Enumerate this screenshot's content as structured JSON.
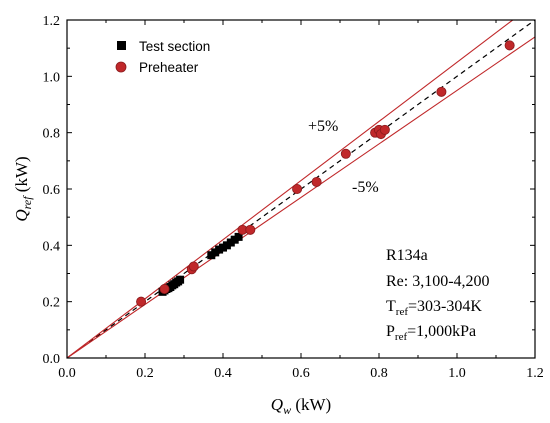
{
  "chart_data": {
    "type": "scatter",
    "x_label": {
      "main": "Q",
      "sub": "w",
      "unit": " (kW)"
    },
    "y_label": {
      "main": "Q",
      "sub": "ref",
      "unit": " (kW)"
    },
    "xlim": [
      0.0,
      1.2
    ],
    "ylim": [
      0.0,
      1.2
    ],
    "x_ticks": [
      "0.0",
      "0.2",
      "0.4",
      "0.6",
      "0.8",
      "1.0",
      "1.2"
    ],
    "y_ticks": [
      "0.0",
      "0.2",
      "0.4",
      "0.6",
      "0.8",
      "1.0",
      "1.2"
    ],
    "grid": false,
    "legend_position": "top-left",
    "series": [
      {
        "name": "Test section",
        "marker": "square",
        "color": "#000000",
        "points": [
          [
            0.245,
            0.235
          ],
          [
            0.25,
            0.24
          ],
          [
            0.255,
            0.245
          ],
          [
            0.26,
            0.248
          ],
          [
            0.265,
            0.252
          ],
          [
            0.27,
            0.258
          ],
          [
            0.275,
            0.262
          ],
          [
            0.28,
            0.268
          ],
          [
            0.285,
            0.272
          ],
          [
            0.29,
            0.278
          ],
          [
            0.37,
            0.365
          ],
          [
            0.38,
            0.375
          ],
          [
            0.39,
            0.385
          ],
          [
            0.4,
            0.392
          ],
          [
            0.41,
            0.4
          ],
          [
            0.42,
            0.41
          ],
          [
            0.43,
            0.42
          ],
          [
            0.44,
            0.43
          ]
        ]
      },
      {
        "name": "Preheater",
        "marker": "circle",
        "color": "#c0282a",
        "points": [
          [
            0.19,
            0.2
          ],
          [
            0.25,
            0.245
          ],
          [
            0.32,
            0.315
          ],
          [
            0.325,
            0.325
          ],
          [
            0.45,
            0.455
          ],
          [
            0.47,
            0.455
          ],
          [
            0.59,
            0.6
          ],
          [
            0.64,
            0.625
          ],
          [
            0.715,
            0.725
          ],
          [
            0.79,
            0.8
          ],
          [
            0.8,
            0.81
          ],
          [
            0.805,
            0.795
          ],
          [
            0.815,
            0.81
          ],
          [
            0.96,
            0.945
          ],
          [
            1.135,
            1.11
          ]
        ]
      }
    ],
    "reference_lines": [
      {
        "kind": "y = x",
        "style": "dashed",
        "color": "#000000"
      },
      {
        "factor": 1.05,
        "color": "#c0282a"
      },
      {
        "factor": 0.95,
        "color": "#c0282a"
      }
    ],
    "annotations": {
      "plus5": "+5%",
      "minus5": "-5%",
      "conditions": {
        "line1": "R134a",
        "line2": "Re: 3,100-4,200",
        "line3": {
          "main": "T",
          "sub": "ref",
          "rest": "=303-304K"
        },
        "line4": {
          "main": "P",
          "sub": "ref",
          "rest": "=1,000kPa"
        }
      }
    }
  }
}
